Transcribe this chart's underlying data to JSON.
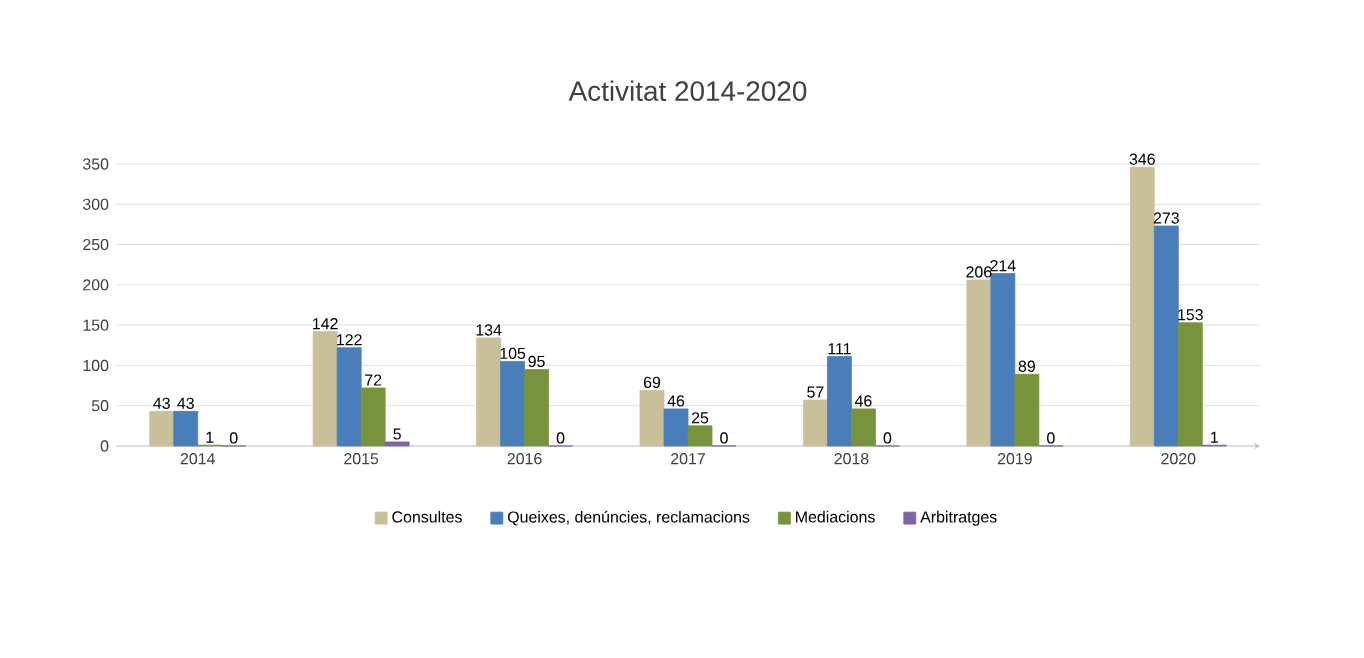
{
  "chart_data": {
    "type": "bar",
    "title": "Activitat 2014-2020",
    "categories": [
      "2014",
      "2015",
      "2016",
      "2017",
      "2018",
      "2019",
      "2020"
    ],
    "series": [
      {
        "name": "Consultes",
        "color": "#c9c09a",
        "values": [
          43,
          142,
          134,
          69,
          57,
          206,
          346
        ]
      },
      {
        "name": "Queixes, denúncies, reclamacions",
        "color": "#4a7ebb",
        "values": [
          43,
          122,
          105,
          46,
          111,
          214,
          273
        ]
      },
      {
        "name": "Mediacions",
        "color": "#77933c",
        "values": [
          1,
          72,
          95,
          25,
          46,
          89,
          153
        ]
      },
      {
        "name": "Arbitratges",
        "color": "#8064a2",
        "values": [
          0,
          5,
          0,
          0,
          0,
          0,
          1
        ]
      }
    ],
    "ylim": [
      0,
      350
    ],
    "yticks": [
      0,
      50,
      100,
      150,
      200,
      250,
      300,
      350
    ],
    "grid": "y",
    "legend": "bottom",
    "data_labels": true
  }
}
